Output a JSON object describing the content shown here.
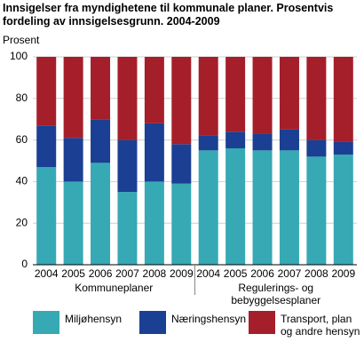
{
  "chart_data": {
    "type": "stacked_bar",
    "title": "Innsigelser fra myndighetene til kommunale planer. Prosentvis fordeling av innsigelsesgrunn. 2004-2009",
    "y_label": "Prosent",
    "categories": [
      "2004",
      "2005",
      "2006",
      "2007",
      "2008",
      "2009",
      "2004",
      "2005",
      "2006",
      "2007",
      "2008",
      "2009"
    ],
    "groups": [
      "Kommuneplaner",
      "Regulerings- og bebyggelsesplaner"
    ],
    "series": [
      {
        "name": "Miljøhensyn",
        "color": "#36a9b4",
        "values": [
          47,
          40,
          49,
          35,
          40,
          39,
          55,
          56,
          55,
          55,
          52,
          53
        ]
      },
      {
        "name": "Næringshensyn",
        "color": "#1a3f93",
        "values": [
          20,
          21,
          21,
          25,
          28,
          19,
          7,
          8,
          8,
          10,
          8,
          6
        ]
      },
      {
        "name": "Transport, plan og andre hensyn",
        "color": "#a51f2a",
        "values": [
          33,
          39,
          30,
          40,
          32,
          42,
          38,
          36,
          37,
          35,
          40,
          41
        ]
      }
    ],
    "ylim": [
      0,
      100
    ],
    "yticks": [
      0,
      20,
      40,
      60,
      80,
      100
    ],
    "grid": true
  }
}
